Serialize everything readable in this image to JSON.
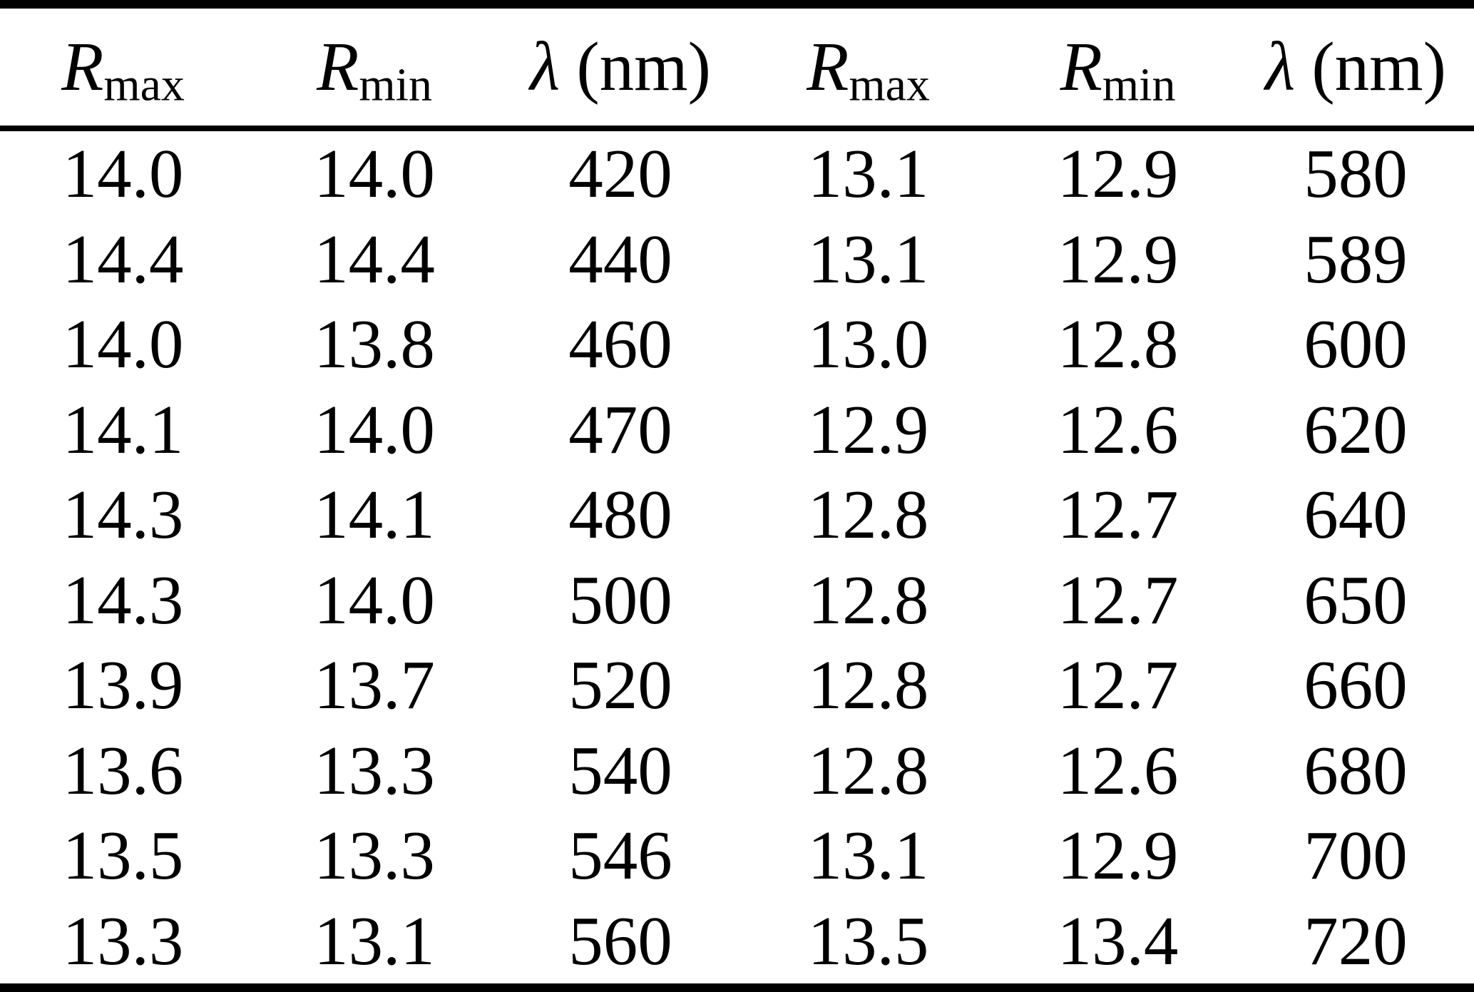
{
  "table": {
    "colors": {
      "text": "#000000",
      "background": "#ffffff",
      "rule": "#000000"
    },
    "header": [
      {
        "base": "R",
        "sub": "max",
        "suffix": ""
      },
      {
        "base": "R",
        "sub": "min",
        "suffix": ""
      },
      {
        "base": "λ",
        "sub": "",
        "suffix": "(nm)"
      },
      {
        "base": "R",
        "sub": "max",
        "suffix": ""
      },
      {
        "base": "R",
        "sub": "min",
        "suffix": ""
      },
      {
        "base": "λ",
        "sub": "",
        "suffix": "(nm)"
      }
    ],
    "rows": [
      [
        "14.0",
        "14.0",
        "420",
        "13.1",
        "12.9",
        "580"
      ],
      [
        "14.4",
        "14.4",
        "440",
        "13.1",
        "12.9",
        "589"
      ],
      [
        "14.0",
        "13.8",
        "460",
        "13.0",
        "12.8",
        "600"
      ],
      [
        "14.1",
        "14.0",
        "470",
        "12.9",
        "12.6",
        "620"
      ],
      [
        "14.3",
        "14.1",
        "480",
        "12.8",
        "12.7",
        "640"
      ],
      [
        "14.3",
        "14.0",
        "500",
        "12.8",
        "12.7",
        "650"
      ],
      [
        "13.9",
        "13.7",
        "520",
        "12.8",
        "12.7",
        "660"
      ],
      [
        "13.6",
        "13.3",
        "540",
        "12.8",
        "12.6",
        "680"
      ],
      [
        "13.5",
        "13.3",
        "546",
        "13.1",
        "12.9",
        "700"
      ],
      [
        "13.3",
        "13.1",
        "560",
        "13.5",
        "13.4",
        "720"
      ]
    ]
  }
}
